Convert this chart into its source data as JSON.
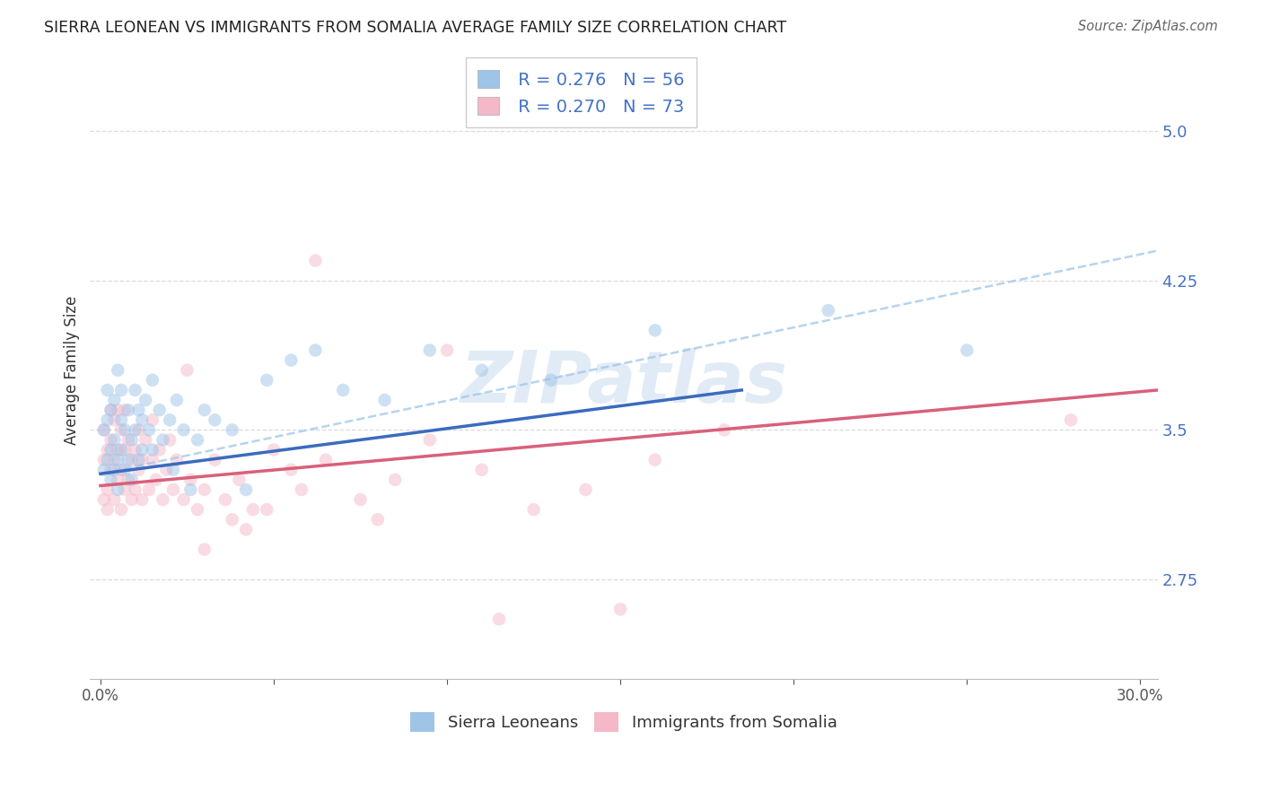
{
  "title": "SIERRA LEONEAN VS IMMIGRANTS FROM SOMALIA AVERAGE FAMILY SIZE CORRELATION CHART",
  "source": "Source: ZipAtlas.com",
  "ylabel": "Average Family Size",
  "xlim": [
    -0.003,
    0.305
  ],
  "ylim": [
    2.25,
    5.35
  ],
  "yticks": [
    2.75,
    3.5,
    4.25,
    5.0
  ],
  "xticks": [
    0.0,
    0.05,
    0.1,
    0.15,
    0.2,
    0.25,
    0.3
  ],
  "xtick_labels": [
    "0.0%",
    "",
    "",
    "",
    "",
    "",
    "30.0%"
  ],
  "ytick_color": "#4472C4",
  "legend_label1": "Sierra Leoneans",
  "legend_label2": "Immigrants from Somalia",
  "blue_color": "#9ec5e8",
  "pink_color": "#f5b8c8",
  "trendline_blue": "#3a6bbf",
  "trendline_pink": "#d9607a",
  "trendline_dashed": "#9ec5e8",
  "watermark": "ZIPatlas",
  "scatter_size": 110,
  "scatter_alpha": 0.5,
  "blue_trend_x": [
    0.0,
    0.185
  ],
  "blue_trend_y": [
    3.28,
    3.7
  ],
  "pink_trend_x": [
    0.0,
    0.305
  ],
  "pink_trend_y": [
    3.22,
    3.7
  ],
  "dashed_trend_x": [
    0.0,
    0.305
  ],
  "dashed_trend_y": [
    3.28,
    4.4
  ],
  "grid_color": "#cccccc",
  "background_color": "#ffffff",
  "legend_r1": "R = 0.276",
  "legend_n1": "N = 56",
  "legend_r2": "R = 0.270",
  "legend_n2": "N = 73",
  "blue_x": [
    0.001,
    0.001,
    0.002,
    0.002,
    0.002,
    0.003,
    0.003,
    0.003,
    0.004,
    0.004,
    0.004,
    0.005,
    0.005,
    0.005,
    0.006,
    0.006,
    0.006,
    0.007,
    0.007,
    0.008,
    0.008,
    0.009,
    0.009,
    0.01,
    0.01,
    0.011,
    0.011,
    0.012,
    0.012,
    0.013,
    0.014,
    0.015,
    0.015,
    0.017,
    0.018,
    0.02,
    0.021,
    0.022,
    0.024,
    0.026,
    0.028,
    0.03,
    0.033,
    0.038,
    0.042,
    0.048,
    0.055,
    0.062,
    0.07,
    0.082,
    0.095,
    0.11,
    0.13,
    0.16,
    0.21,
    0.25
  ],
  "blue_y": [
    3.3,
    3.5,
    3.35,
    3.55,
    3.7,
    3.25,
    3.4,
    3.6,
    3.3,
    3.45,
    3.65,
    3.2,
    3.35,
    3.8,
    3.4,
    3.55,
    3.7,
    3.3,
    3.5,
    3.35,
    3.6,
    3.45,
    3.25,
    3.5,
    3.7,
    3.35,
    3.6,
    3.4,
    3.55,
    3.65,
    3.5,
    3.4,
    3.75,
    3.6,
    3.45,
    3.55,
    3.3,
    3.65,
    3.5,
    3.2,
    3.45,
    3.6,
    3.55,
    3.5,
    3.2,
    3.75,
    3.85,
    3.9,
    3.7,
    3.65,
    3.9,
    3.8,
    3.75,
    4.0,
    4.1,
    3.9
  ],
  "pink_x": [
    0.001,
    0.001,
    0.001,
    0.002,
    0.002,
    0.002,
    0.003,
    0.003,
    0.003,
    0.004,
    0.004,
    0.004,
    0.005,
    0.005,
    0.005,
    0.006,
    0.006,
    0.006,
    0.007,
    0.007,
    0.007,
    0.008,
    0.008,
    0.009,
    0.009,
    0.01,
    0.01,
    0.011,
    0.011,
    0.012,
    0.012,
    0.013,
    0.014,
    0.015,
    0.015,
    0.016,
    0.017,
    0.018,
    0.019,
    0.02,
    0.021,
    0.022,
    0.024,
    0.026,
    0.028,
    0.03,
    0.033,
    0.036,
    0.04,
    0.044,
    0.05,
    0.058,
    0.065,
    0.075,
    0.085,
    0.095,
    0.11,
    0.125,
    0.14,
    0.16,
    0.18,
    0.062,
    0.038,
    0.115,
    0.1,
    0.048,
    0.08,
    0.055,
    0.03,
    0.025,
    0.042,
    0.15,
    0.28
  ],
  "pink_y": [
    3.15,
    3.35,
    3.5,
    3.2,
    3.4,
    3.1,
    3.3,
    3.45,
    3.6,
    3.15,
    3.35,
    3.55,
    3.25,
    3.4,
    3.6,
    3.1,
    3.3,
    3.5,
    3.2,
    3.4,
    3.6,
    3.25,
    3.45,
    3.15,
    3.35,
    3.2,
    3.4,
    3.3,
    3.5,
    3.15,
    3.35,
    3.45,
    3.2,
    3.35,
    3.55,
    3.25,
    3.4,
    3.15,
    3.3,
    3.45,
    3.2,
    3.35,
    3.15,
    3.25,
    3.1,
    3.2,
    3.35,
    3.15,
    3.25,
    3.1,
    3.4,
    3.2,
    3.35,
    3.15,
    3.25,
    3.45,
    3.3,
    3.1,
    3.2,
    3.35,
    3.5,
    4.35,
    3.05,
    2.55,
    3.9,
    3.1,
    3.05,
    3.3,
    2.9,
    3.8,
    3.0,
    2.6,
    3.55
  ]
}
